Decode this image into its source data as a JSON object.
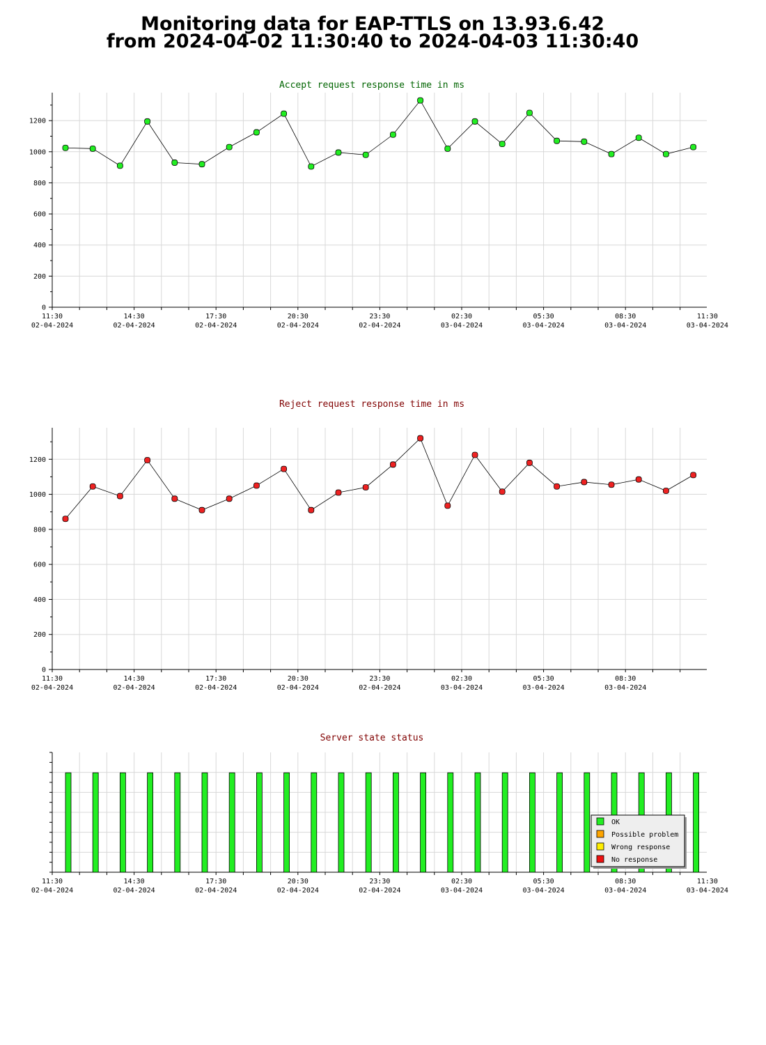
{
  "page": {
    "title_line1": "Monitoring data for EAP-TTLS on 13.93.6.42",
    "title_line2": "from 2024-04-02 11:30:40 to 2024-04-03 11:30:40"
  },
  "colors": {
    "accept_title": "#006400",
    "reject_title": "#800000",
    "status_title": "#800000",
    "accept_marker": "#22ee22",
    "reject_marker": "#ee2222",
    "ok": "#22ee22",
    "possible_problem": "#ffa500",
    "wrong_response": "#ffee00",
    "no_response": "#ee1111",
    "grid": "#d8d8d8"
  },
  "chart_data": [
    {
      "type": "line",
      "title": "Accept request response time in ms",
      "ylim": [
        0,
        1380
      ],
      "yticks": [
        0,
        200,
        400,
        600,
        800,
        1000,
        1200
      ],
      "x_tick_labels": [
        {
          "time": "11:30",
          "date": "02-04-2024"
        },
        {
          "time": "14:30",
          "date": "02-04-2024"
        },
        {
          "time": "17:30",
          "date": "02-04-2024"
        },
        {
          "time": "20:30",
          "date": "02-04-2024"
        },
        {
          "time": "23:30",
          "date": "02-04-2024"
        },
        {
          "time": "02:30",
          "date": "03-04-2024"
        },
        {
          "time": "05:30",
          "date": "03-04-2024"
        },
        {
          "time": "08:30",
          "date": "03-04-2024"
        },
        {
          "time": "11:30",
          "date": "03-04-2024"
        }
      ],
      "grid": true,
      "series": [
        {
          "values": [
            1025,
            1020,
            910,
            1195,
            930,
            920,
            1030,
            1125,
            1245,
            905,
            995,
            980,
            1110,
            1330,
            1020,
            1195,
            1050,
            1250,
            1070,
            1065,
            985,
            1090,
            985,
            1030
          ]
        }
      ]
    },
    {
      "type": "line",
      "title": "Reject request response time in ms",
      "ylim": [
        0,
        1380
      ],
      "yticks": [
        0,
        200,
        400,
        600,
        800,
        1000,
        1200
      ],
      "x_tick_labels": [
        {
          "time": "11:30",
          "date": "02-04-2024"
        },
        {
          "time": "14:30",
          "date": "02-04-2024"
        },
        {
          "time": "17:30",
          "date": "02-04-2024"
        },
        {
          "time": "20:30",
          "date": "02-04-2024"
        },
        {
          "time": "23:30",
          "date": "02-04-2024"
        },
        {
          "time": "02:30",
          "date": "03-04-2024"
        },
        {
          "time": "05:30",
          "date": "03-04-2024"
        },
        {
          "time": "08:30",
          "date": "03-04-2024"
        }
      ],
      "grid": true,
      "series": [
        {
          "values": [
            860,
            1045,
            990,
            1195,
            975,
            910,
            975,
            1050,
            1145,
            910,
            1010,
            1040,
            1170,
            1320,
            935,
            1225,
            1015,
            1180,
            1045,
            1070,
            1055,
            1085,
            1020,
            1110
          ]
        }
      ]
    },
    {
      "type": "bar",
      "title": "Server state status",
      "x_tick_labels": [
        {
          "time": "11:30",
          "date": "02-04-2024"
        },
        {
          "time": "14:30",
          "date": "02-04-2024"
        },
        {
          "time": "17:30",
          "date": "02-04-2024"
        },
        {
          "time": "20:30",
          "date": "02-04-2024"
        },
        {
          "time": "23:30",
          "date": "02-04-2024"
        },
        {
          "time": "02:30",
          "date": "03-04-2024"
        },
        {
          "time": "05:30",
          "date": "03-04-2024"
        },
        {
          "time": "08:30",
          "date": "03-04-2024"
        },
        {
          "time": "11:30",
          "date": "03-04-2024"
        }
      ],
      "grid": true,
      "level": 0.83,
      "states": [
        "OK",
        "OK",
        "OK",
        "OK",
        "OK",
        "OK",
        "OK",
        "OK",
        "OK",
        "OK",
        "OK",
        "OK",
        "OK",
        "OK",
        "OK",
        "OK",
        "OK",
        "OK",
        "OK",
        "OK",
        "OK",
        "OK",
        "OK",
        "OK"
      ],
      "legend_position": "bottom-right",
      "legend": [
        {
          "label": "OK",
          "color_key": "ok"
        },
        {
          "label": "Possible problem",
          "color_key": "possible_problem"
        },
        {
          "label": "Wrong response",
          "color_key": "wrong_response"
        },
        {
          "label": "No response",
          "color_key": "no_response"
        }
      ]
    }
  ]
}
